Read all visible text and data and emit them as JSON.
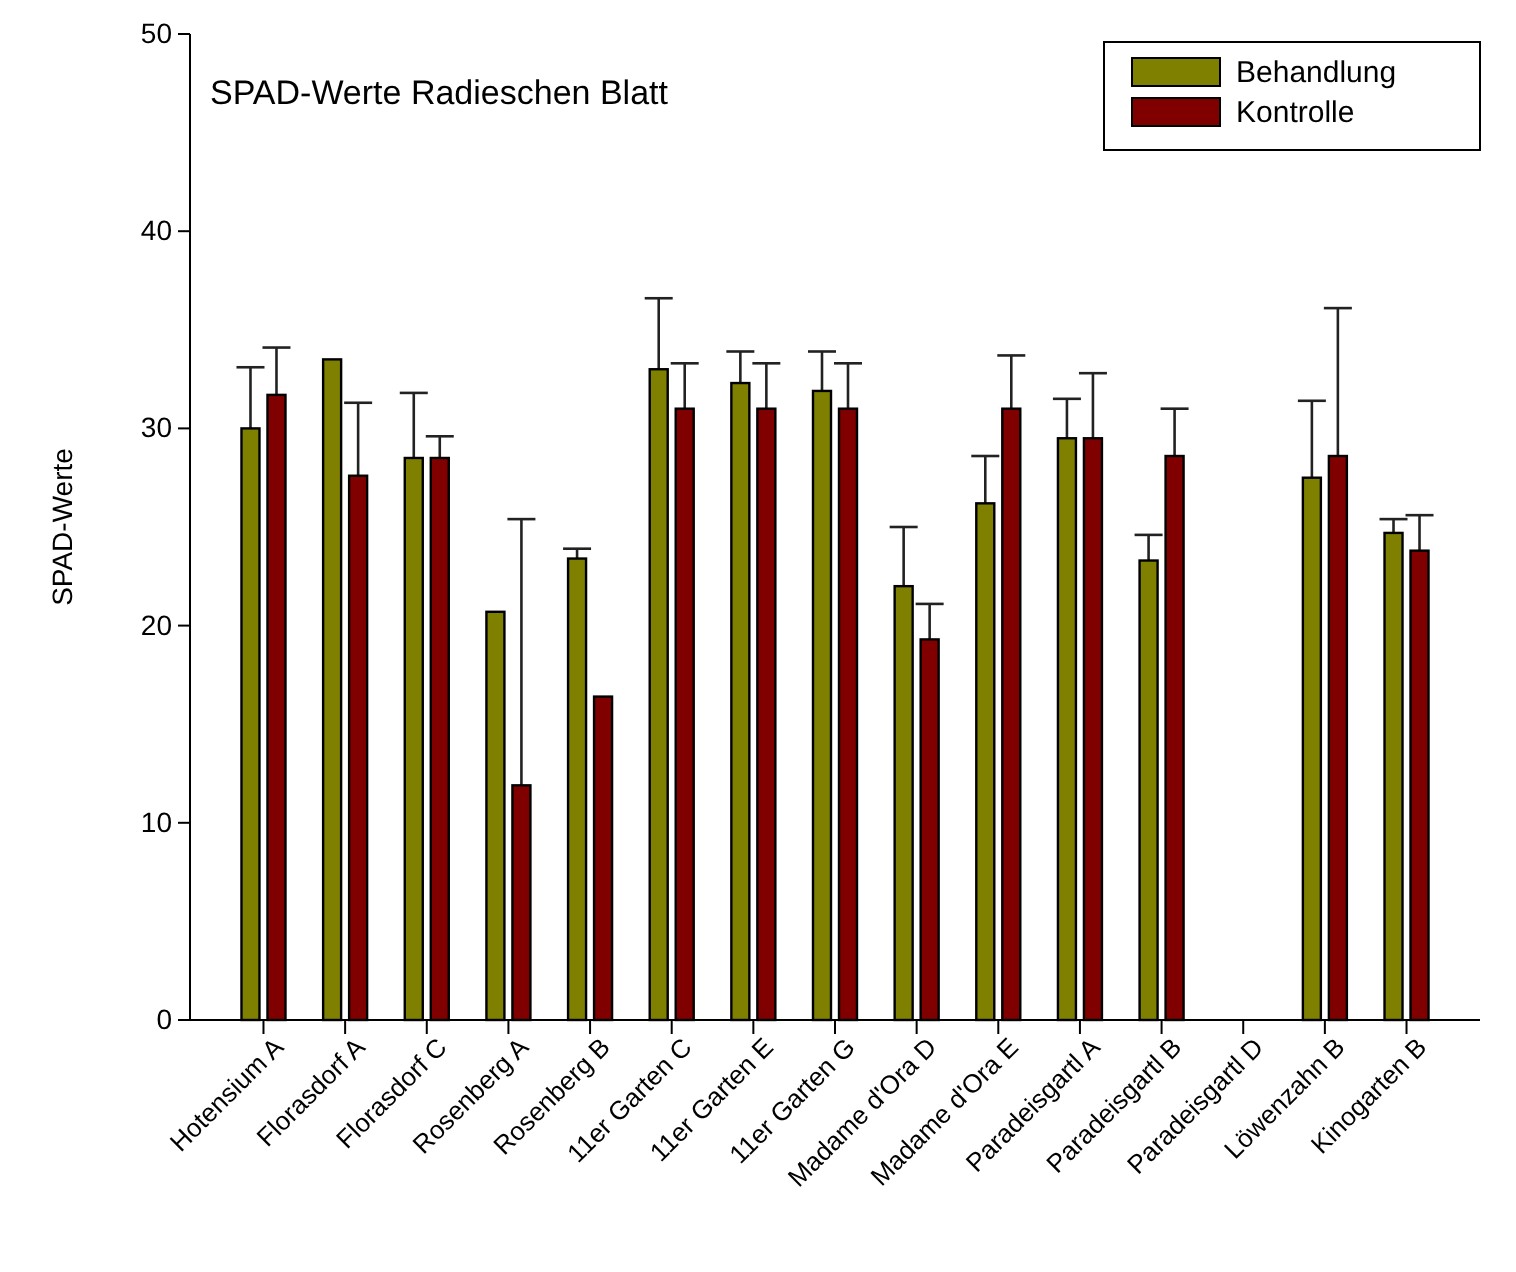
{
  "chart_data": {
    "type": "bar",
    "title": "SPAD-Werte Radieschen Blatt",
    "ylabel": "SPAD-Werte",
    "categories": [
      "Hotensium A",
      "Florasdorf A",
      "Florasdorf C",
      "Rosenberg A",
      "Rosenberg B",
      "11er Garten C",
      "11er Garten E",
      "11er Garten G",
      "Madame d'Ora D",
      "Madame d'Ora E",
      "Paradeisgartl A",
      "Paradeisgartl B",
      "Paradeisgartl D",
      "Löwenzahn B",
      "Kinogarten B"
    ],
    "series": [
      {
        "name": "Behandlung",
        "color": "#808000",
        "values": [
          30.0,
          33.5,
          28.5,
          20.7,
          23.4,
          33.0,
          32.3,
          31.9,
          22.0,
          26.2,
          29.5,
          23.3,
          null,
          27.5,
          24.7
        ],
        "errors": [
          [
            30.0,
            33.1
          ],
          null,
          [
            28.5,
            31.8
          ],
          null,
          [
            23.4,
            23.9
          ],
          [
            33.0,
            36.6
          ],
          [
            32.3,
            33.9
          ],
          [
            31.9,
            33.9
          ],
          [
            22.0,
            25.0
          ],
          [
            26.2,
            28.6
          ],
          [
            29.5,
            31.5
          ],
          [
            23.3,
            24.6
          ],
          null,
          [
            27.5,
            31.4
          ],
          [
            24.7,
            25.4
          ]
        ]
      },
      {
        "name": "Kontrolle",
        "color": "#800000",
        "values": [
          31.7,
          27.6,
          28.5,
          11.9,
          16.4,
          31.0,
          31.0,
          31.0,
          19.3,
          31.0,
          29.5,
          28.6,
          null,
          28.6,
          23.8
        ],
        "errors": [
          [
            31.7,
            34.1
          ],
          [
            27.6,
            31.3
          ],
          [
            28.5,
            29.6
          ],
          [
            11.9,
            25.4
          ],
          null,
          [
            31.0,
            33.3
          ],
          [
            31.0,
            33.3
          ],
          [
            31.0,
            33.3
          ],
          [
            19.3,
            21.1
          ],
          [
            31.0,
            33.7
          ],
          [
            29.5,
            32.8
          ],
          [
            28.6,
            31.0
          ],
          null,
          [
            28.6,
            36.1
          ],
          [
            23.8,
            25.6
          ]
        ]
      }
    ],
    "ylim": [
      0,
      50
    ],
    "yticks": [
      0,
      10,
      20,
      30,
      40,
      50
    ],
    "grid": false,
    "legend": "top right"
  }
}
